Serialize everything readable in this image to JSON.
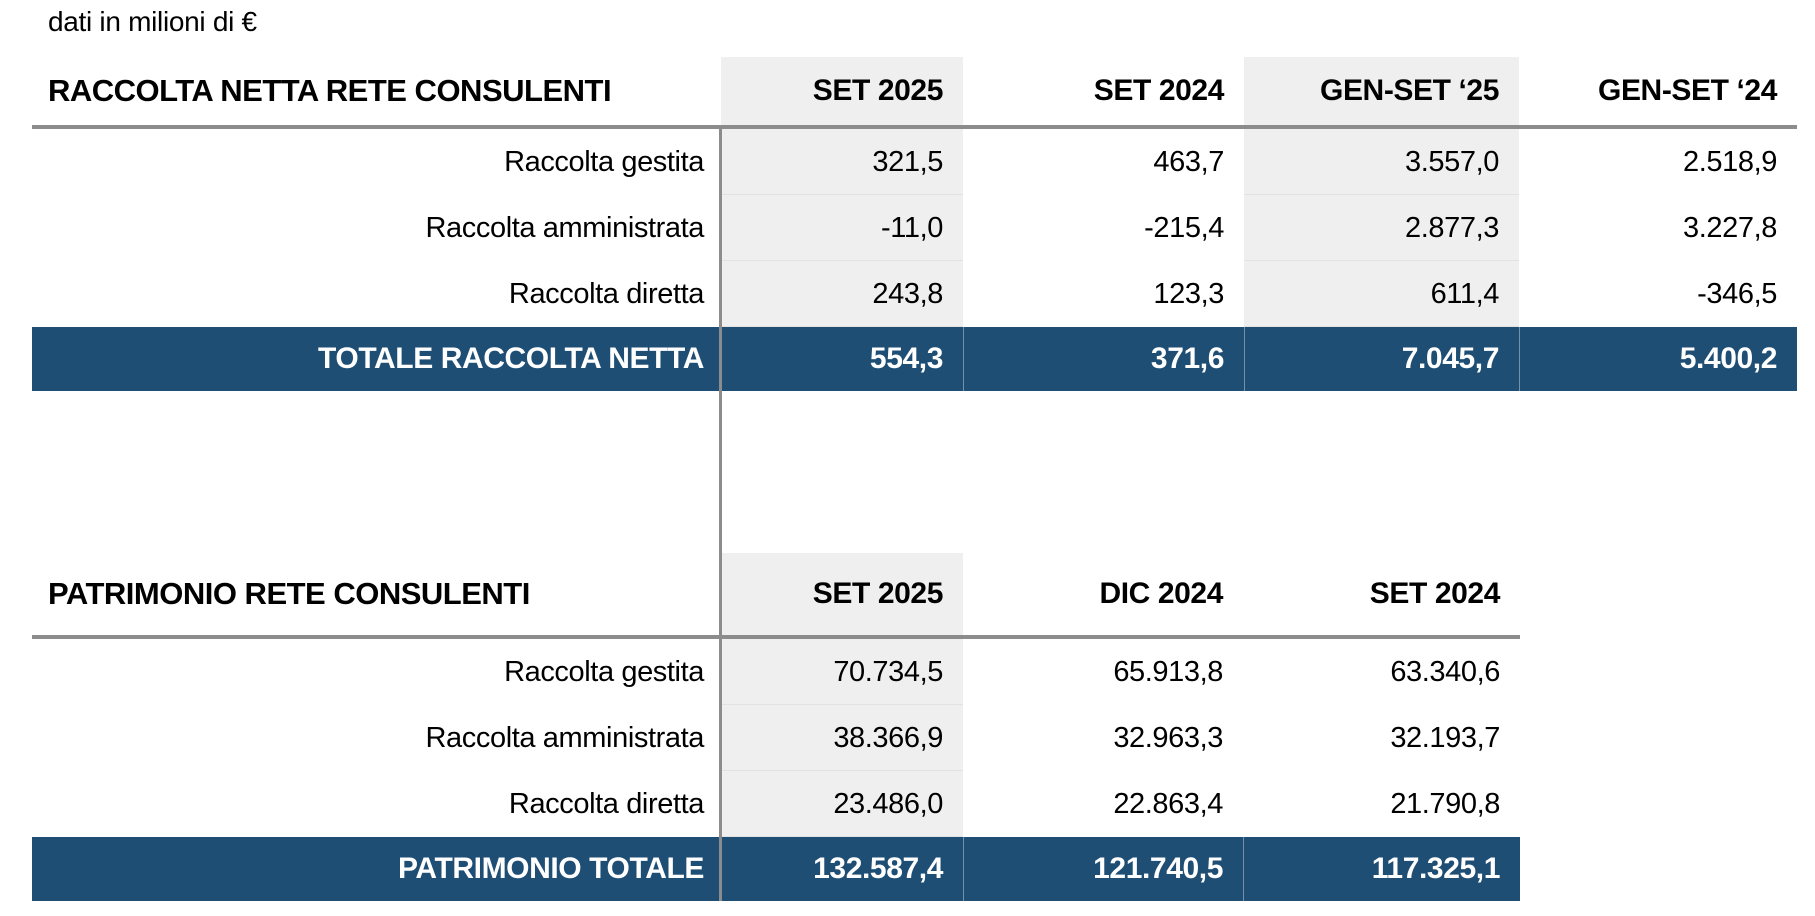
{
  "note": "dati in milioni di €",
  "colors": {
    "accent_blue": "#1F4E74",
    "column_shade_gray": "#EFEFEF",
    "rule_gray": "#8C8C8C"
  },
  "tables": [
    {
      "title": "RACCOLTA NETTA RETE CONSULENTI",
      "columns": [
        "SET 2025",
        "SET 2024",
        "GEN-SET ‘25",
        "GEN-SET ‘24"
      ],
      "rows": [
        {
          "label": "Raccolta gestita",
          "values": [
            "321,5",
            "463,7",
            "3.557,0",
            "2.518,9"
          ]
        },
        {
          "label": "Raccolta amministrata",
          "values": [
            "-11,0",
            "-215,4",
            "2.877,3",
            "3.227,8"
          ]
        },
        {
          "label": "Raccolta diretta",
          "values": [
            "243,8",
            "123,3",
            "611,4",
            "-346,5"
          ]
        }
      ],
      "total": {
        "label": "TOTALE RACCOLTA NETTA",
        "values": [
          "554,3",
          "371,6",
          "7.045,7",
          "5.400,2"
        ]
      }
    },
    {
      "title": "PATRIMONIO RETE CONSULENTI",
      "columns": [
        "SET 2025",
        "DIC 2024",
        "SET 2024"
      ],
      "rows": [
        {
          "label": "Raccolta gestita",
          "values": [
            "70.734,5",
            "65.913,8",
            "63.340,6"
          ]
        },
        {
          "label": "Raccolta amministrata",
          "values": [
            "38.366,9",
            "32.963,3",
            "32.193,7"
          ]
        },
        {
          "label": "Raccolta diretta",
          "values": [
            "23.486,0",
            "22.863,4",
            "21.790,8"
          ]
        }
      ],
      "total": {
        "label": "PATRIMONIO TOTALE",
        "values": [
          "132.587,4",
          "121.740,5",
          "117.325,1"
        ]
      }
    }
  ]
}
